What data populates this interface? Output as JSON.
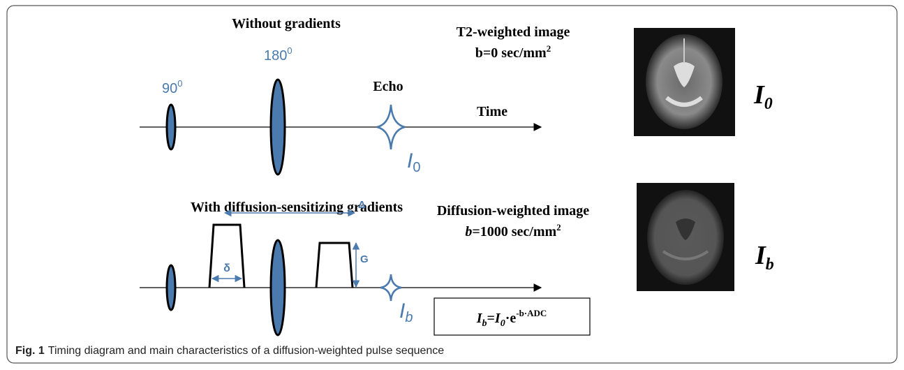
{
  "top_panel": {
    "title": "Without gradients",
    "pulse_90": {
      "label": "90",
      "superscript": "0"
    },
    "pulse_180": {
      "label": "180",
      "superscript": "0"
    },
    "echo": "Echo",
    "time": "Time",
    "signal": {
      "symbol": "I",
      "subscript": "0"
    },
    "image_title": "T2-weighted image",
    "image_b": {
      "text": "b=0 sec/mm",
      "superscript": "2"
    },
    "image_label": {
      "symbol": "I",
      "subscript": "0"
    }
  },
  "bottom_panel": {
    "title": "With diffusion-sensitizing gradients",
    "delta_big": "Δ",
    "gradient": "G",
    "delta_small": "δ",
    "signal": {
      "symbol": "I",
      "subscript": "b"
    },
    "image_title": "Diffusion-weighted image",
    "image_b": {
      "variable": "b",
      "text": "=1000 sec/mm",
      "superscript": "2"
    },
    "image_label": {
      "symbol": "I",
      "subscript": "b"
    },
    "formula": {
      "lhs_symbol": "I",
      "lhs_subscript": "b",
      "equals": "=",
      "i0_symbol": "I",
      "i0_subscript": "0",
      "base": "·e",
      "exponent": "-b·ADC"
    }
  },
  "caption": {
    "label": "Fig. 1",
    "text": "Timing diagram and main characteristics of a diffusion-weighted pulse sequence"
  }
}
